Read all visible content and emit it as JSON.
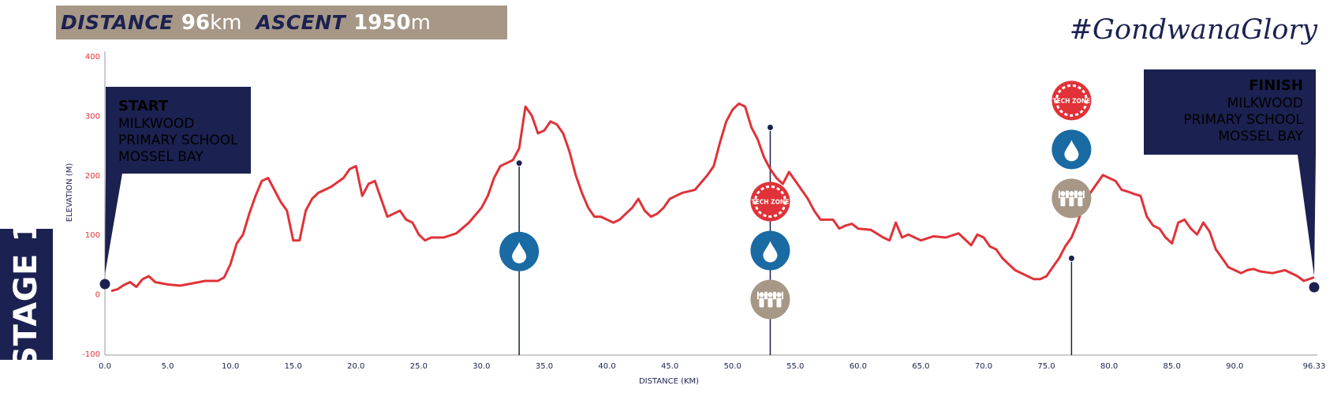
{
  "header": {
    "distance_label": "DISTANCE",
    "distance_value": "96",
    "distance_unit": "km",
    "ascent_label": "ASCENT",
    "ascent_value": "1950",
    "ascent_unit": "m"
  },
  "hashtag": "#GondwanaGlory",
  "stage": "STAGE 1",
  "start": {
    "title": "START",
    "lines": [
      "MILKWOOD",
      "PRIMARY SCHOOL",
      "MOSSEL BAY"
    ]
  },
  "finish": {
    "title": "FINISH",
    "lines": [
      "MILKWOOD",
      "PRIMARY SCHOOL",
      "MOSSEL BAY"
    ]
  },
  "icons": {
    "tech_zone_text": "TECH ZONE"
  },
  "colors": {
    "navy": "#1b2150",
    "profile": "#e03238",
    "banner": "#a69787",
    "water": "#1a6aa3",
    "spectator": "#a69787",
    "tech": "#e03238"
  },
  "chart_data": {
    "type": "line",
    "xlabel": "DISTANCE (KM)",
    "ylabel": "ELEVATION (M)",
    "xlim": [
      0,
      96.33
    ],
    "ylim": [
      -100,
      400
    ],
    "x_ticks": [
      "0.0",
      "5.0",
      "10.0",
      "15.0",
      "20.0",
      "25.0",
      "30.0",
      "35.0",
      "40.0",
      "45.0",
      "50.0",
      "55.0",
      "60.0",
      "65.0",
      "70.0",
      "75.0",
      "80.0",
      "85.0",
      "90.0",
      "96.33"
    ],
    "x_tick_values": [
      0,
      5,
      10,
      15,
      20,
      25,
      30,
      35,
      40,
      45,
      50,
      55,
      60,
      65,
      70,
      75,
      80,
      85,
      90,
      96.33
    ],
    "y_ticks": [
      "400",
      "300",
      "200",
      "100",
      "0",
      "-100"
    ],
    "y_tick_values": [
      400,
      300,
      200,
      100,
      0,
      -100
    ],
    "series": [
      {
        "x": [
          0.5,
          1.0,
          1.5,
          2.0,
          2.5,
          3.0,
          3.5,
          4.0,
          5.0,
          6.0,
          7.0,
          8.0,
          9.0,
          9.5,
          10.0,
          10.5,
          11.0,
          11.5,
          12.0,
          12.5,
          13.0,
          13.5,
          14.0,
          14.5,
          15.0,
          15.5,
          16.0,
          16.5,
          17.0,
          17.5,
          18.0,
          19.0,
          19.5,
          20.0,
          20.5,
          21.0,
          21.5,
          22.0,
          22.5,
          23.0,
          23.5,
          24.0,
          24.5,
          25.0,
          25.5,
          26.0,
          27.0,
          28.0,
          29.0,
          30.0,
          30.5,
          31.0,
          31.5,
          32.0,
          32.5,
          33.0,
          33.5,
          34.0,
          34.5,
          35.0,
          35.5,
          36.0,
          36.5,
          37.0,
          37.5,
          38.0,
          38.5,
          39.0,
          39.5,
          40.0,
          40.5,
          41.0,
          41.5,
          42.0,
          42.5,
          43.0,
          43.5,
          44.0,
          44.5,
          45.0,
          45.5,
          46.0,
          47.0,
          48.0,
          48.5,
          49.0,
          49.5,
          50.0,
          50.5,
          51.0,
          51.5,
          52.0,
          52.5,
          53.0,
          53.5,
          54.0,
          54.5,
          55.0,
          55.5,
          56.0,
          56.5,
          57.0,
          57.5,
          58.0,
          58.5,
          59.0,
          59.5,
          60.0,
          61.0,
          62.0,
          62.5,
          63.0,
          63.5,
          64.0,
          64.5,
          65.0,
          66.0,
          67.0,
          68.0,
          69.0,
          69.5,
          70.0,
          70.5,
          71.0,
          71.5,
          72.0,
          72.5,
          73.0,
          73.5,
          74.0,
          74.5,
          75.0,
          75.5,
          76.0,
          76.5,
          77.0,
          77.5,
          78.0,
          78.5,
          79.0,
          79.5,
          80.0,
          80.5,
          81.0,
          81.5,
          82.0,
          82.5,
          83.0,
          83.5,
          84.0,
          84.5,
          85.0,
          85.5,
          86.0,
          86.5,
          87.0,
          87.5,
          88.0,
          88.5,
          89.0,
          89.5,
          90.0,
          90.5,
          91.0,
          91.5,
          92.0,
          93.0,
          94.0,
          95.0,
          95.5,
          96.33
        ],
        "y": [
          5,
          8,
          15,
          20,
          12,
          25,
          30,
          20,
          16,
          14,
          18,
          22,
          22,
          28,
          50,
          85,
          100,
          135,
          165,
          190,
          195,
          175,
          155,
          140,
          90,
          90,
          140,
          160,
          170,
          175,
          180,
          195,
          210,
          215,
          165,
          185,
          190,
          160,
          130,
          135,
          140,
          125,
          120,
          100,
          90,
          95,
          95,
          102,
          120,
          145,
          165,
          195,
          215,
          220,
          225,
          245,
          315,
          300,
          270,
          275,
          290,
          285,
          270,
          240,
          200,
          170,
          145,
          130,
          130,
          125,
          120,
          125,
          135,
          145,
          160,
          140,
          130,
          135,
          145,
          160,
          165,
          170,
          175,
          200,
          215,
          255,
          290,
          310,
          320,
          315,
          280,
          260,
          230,
          210,
          195,
          185,
          205,
          190,
          175,
          160,
          140,
          125,
          125,
          125,
          110,
          115,
          118,
          110,
          108,
          95,
          90,
          120,
          95,
          100,
          95,
          90,
          97,
          95,
          102,
          82,
          100,
          95,
          80,
          75,
          60,
          50,
          40,
          35,
          30,
          25,
          25,
          30,
          45,
          60,
          80,
          95,
          120,
          155,
          170,
          185,
          200,
          195,
          190,
          175,
          172,
          168,
          165,
          130,
          115,
          110,
          95,
          85,
          120,
          125,
          110,
          100,
          120,
          105,
          75,
          60,
          45,
          40,
          35,
          40,
          42,
          38,
          35,
          40,
          30,
          22,
          28
        ]
      }
    ],
    "markers": [
      {
        "x": 33.0,
        "y": 220,
        "stem_bottom": -100,
        "icons": [
          "water"
        ]
      },
      {
        "x": 53.0,
        "y": 280,
        "stem_bottom": -100,
        "icons": [
          "tech",
          "water",
          "spectator"
        ]
      },
      {
        "x": 77.0,
        "y": 60,
        "stem_bottom": -100,
        "icons": [
          "tech",
          "water",
          "spectator"
        ]
      }
    ]
  }
}
